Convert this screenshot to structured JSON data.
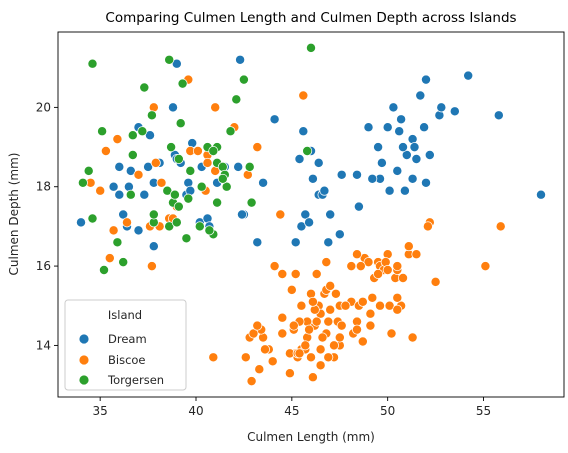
{
  "chart_data": {
    "type": "scatter",
    "title": "Comparing Culmen Length and Culmen Depth across Islands",
    "xlabel": "Culmen Length (mm)",
    "ylabel": "Culmen Depth (mm)",
    "xlim": [
      32.8,
      59.2
    ],
    "ylim": [
      12.7,
      21.9
    ],
    "xticks": [
      35,
      40,
      45,
      50,
      55
    ],
    "yticks": [
      14,
      16,
      18,
      20
    ],
    "grid": false,
    "legend": {
      "title": "Island",
      "placement": "lower-left"
    },
    "series": [
      {
        "name": "Dream",
        "color": "#1f77b4",
        "points": [
          [
            34.0,
            17.1
          ],
          [
            35.7,
            18.0
          ],
          [
            36.0,
            17.8
          ],
          [
            36.0,
            18.5
          ],
          [
            36.4,
            17.0
          ],
          [
            36.5,
            18.0
          ],
          [
            37.0,
            16.9
          ],
          [
            37.0,
            19.5
          ],
          [
            37.3,
            17.8
          ],
          [
            37.6,
            19.3
          ],
          [
            37.8,
            18.1
          ],
          [
            37.8,
            16.5
          ],
          [
            38.1,
            18.6
          ],
          [
            38.8,
            17.2
          ],
          [
            38.9,
            18.8
          ],
          [
            39.0,
            18.7
          ],
          [
            39.2,
            18.6
          ],
          [
            39.5,
            17.8
          ],
          [
            39.6,
            18.1
          ],
          [
            39.7,
            17.9
          ],
          [
            39.8,
            19.1
          ],
          [
            40.2,
            17.1
          ],
          [
            40.6,
            17.2
          ],
          [
            40.7,
            17.0
          ],
          [
            40.8,
            18.9
          ],
          [
            41.1,
            18.1
          ],
          [
            41.5,
            18.5
          ],
          [
            42.2,
            18.5
          ],
          [
            42.3,
            21.2
          ],
          [
            42.5,
            17.3
          ],
          [
            43.2,
            16.6
          ],
          [
            43.5,
            18.1
          ],
          [
            44.1,
            19.7
          ],
          [
            45.2,
            16.6
          ],
          [
            45.4,
            18.7
          ],
          [
            45.5,
            17.0
          ],
          [
            45.6,
            19.4
          ],
          [
            45.7,
            17.3
          ],
          [
            46.0,
            18.9
          ],
          [
            46.1,
            18.2
          ],
          [
            46.4,
            17.8
          ],
          [
            46.6,
            17.8
          ],
          [
            46.7,
            17.9
          ],
          [
            46.9,
            16.6
          ],
          [
            47.0,
            17.3
          ],
          [
            47.5,
            16.8
          ],
          [
            48.5,
            17.5
          ],
          [
            49.0,
            19.5
          ],
          [
            49.5,
            19.0
          ],
          [
            49.6,
            18.2
          ],
          [
            49.7,
            18.6
          ],
          [
            50.0,
            19.5
          ],
          [
            50.1,
            17.9
          ],
          [
            50.3,
            20.0
          ],
          [
            50.5,
            18.4
          ],
          [
            50.6,
            19.4
          ],
          [
            50.7,
            19.7
          ],
          [
            51.0,
            18.8
          ],
          [
            51.3,
            19.2
          ],
          [
            51.3,
            18.2
          ],
          [
            51.4,
            19.0
          ],
          [
            51.5,
            18.7
          ],
          [
            51.7,
            20.3
          ],
          [
            51.9,
            19.5
          ],
          [
            52.0,
            20.7
          ],
          [
            52.0,
            18.1
          ],
          [
            52.2,
            18.8
          ],
          [
            52.7,
            19.8
          ],
          [
            53.5,
            19.9
          ],
          [
            54.2,
            20.8
          ],
          [
            55.8,
            19.8
          ],
          [
            58.0,
            17.8
          ],
          [
            49.2,
            18.2
          ],
          [
            46.4,
            18.6
          ],
          [
            42.4,
            17.3
          ],
          [
            38.8,
            20.0
          ],
          [
            39.7,
            18.4
          ],
          [
            40.3,
            18.5
          ],
          [
            41.1,
            19.0
          ],
          [
            37.5,
            18.5
          ],
          [
            36.6,
            18.4
          ],
          [
            39.0,
            21.1
          ],
          [
            47.6,
            18.3
          ],
          [
            48.4,
            18.3
          ],
          [
            50.8,
            19.0
          ],
          [
            50.9,
            17.9
          ],
          [
            52.8,
            20.0
          ],
          [
            45.9,
            17.1
          ],
          [
            36.2,
            17.3
          ]
        ]
      },
      {
        "name": "Biscoe",
        "color": "#ff7f0e",
        "points": [
          [
            34.5,
            18.1
          ],
          [
            35.0,
            17.9
          ],
          [
            35.3,
            18.9
          ],
          [
            35.7,
            16.9
          ],
          [
            35.9,
            19.2
          ],
          [
            36.4,
            17.1
          ],
          [
            37.6,
            17.0
          ],
          [
            37.7,
            16.0
          ],
          [
            37.8,
            20.0
          ],
          [
            37.9,
            18.6
          ],
          [
            38.1,
            17.0
          ],
          [
            38.2,
            18.1
          ],
          [
            38.6,
            17.2
          ],
          [
            38.8,
            17.2
          ],
          [
            39.0,
            17.5
          ],
          [
            39.6,
            20.7
          ],
          [
            39.7,
            18.9
          ],
          [
            40.1,
            18.9
          ],
          [
            40.5,
            17.9
          ],
          [
            40.6,
            18.8
          ],
          [
            41.0,
            20.0
          ],
          [
            41.4,
            18.5
          ],
          [
            41.6,
            18.0
          ],
          [
            42.0,
            19.5
          ],
          [
            42.7,
            18.3
          ],
          [
            43.2,
            19.0
          ],
          [
            43.8,
            13.9
          ],
          [
            44.0,
            13.6
          ],
          [
            44.4,
            17.3
          ],
          [
            45.1,
            14.5
          ],
          [
            45.2,
            13.8
          ],
          [
            45.5,
            13.9
          ],
          [
            46.1,
            13.2
          ],
          [
            46.2,
            14.5
          ],
          [
            46.5,
            13.5
          ],
          [
            46.8,
            14.3
          ],
          [
            47.2,
            13.7
          ],
          [
            47.5,
            14.0
          ],
          [
            48.1,
            15.1
          ],
          [
            48.4,
            14.6
          ],
          [
            48.5,
            15.0
          ],
          [
            48.7,
            14.1
          ],
          [
            49.1,
            14.8
          ],
          [
            49.5,
            16.1
          ],
          [
            50.0,
            16.3
          ],
          [
            50.4,
            15.7
          ],
          [
            51.1,
            16.3
          ],
          [
            52.5,
            15.6
          ],
          [
            43.3,
            13.4
          ],
          [
            45.8,
            14.6
          ],
          [
            47.3,
            15.3
          ],
          [
            49.6,
            16.0
          ],
          [
            50.5,
            15.9
          ],
          [
            48.2,
            14.3
          ],
          [
            46.9,
            14.6
          ],
          [
            42.9,
            13.1
          ],
          [
            46.3,
            15.8
          ],
          [
            44.5,
            14.3
          ],
          [
            45.3,
            13.7
          ],
          [
            47.4,
            14.6
          ],
          [
            46.4,
            15.0
          ],
          [
            45.4,
            14.6
          ],
          [
            49.8,
            15.9
          ],
          [
            43.5,
            14.2
          ],
          [
            50.8,
            15.7
          ],
          [
            44.9,
            13.3
          ],
          [
            46.6,
            14.2
          ],
          [
            46.7,
            15.3
          ],
          [
            45.7,
            13.9
          ],
          [
            48.8,
            16.2
          ],
          [
            50.7,
            15.0
          ],
          [
            44.1,
            16.0
          ],
          [
            45.0,
            15.4
          ],
          [
            51.5,
            16.3
          ],
          [
            46.0,
            15.3
          ],
          [
            42.6,
            13.7
          ],
          [
            44.9,
            13.8
          ],
          [
            50.1,
            15.0
          ],
          [
            45.2,
            15.8
          ],
          [
            49.9,
            16.1
          ],
          [
            46.8,
            16.1
          ],
          [
            45.5,
            15.0
          ],
          [
            52.2,
            17.1
          ],
          [
            49.0,
            16.1
          ],
          [
            50.5,
            15.2
          ],
          [
            47.7,
            15.0
          ],
          [
            45.1,
            14.4
          ],
          [
            48.6,
            16.0
          ],
          [
            43.6,
            13.9
          ],
          [
            45.3,
            13.8
          ],
          [
            46.5,
            14.8
          ],
          [
            50.2,
            14.3
          ],
          [
            43.4,
            14.4
          ],
          [
            44.0,
            13.6
          ],
          [
            47.5,
            15.0
          ],
          [
            45.8,
            14.2
          ],
          [
            49.3,
            15.7
          ],
          [
            46.2,
            14.9
          ],
          [
            49.2,
            15.2
          ],
          [
            50.0,
            15.9
          ],
          [
            48.7,
            15.1
          ],
          [
            46.1,
            15.1
          ],
          [
            47.8,
            15.0
          ],
          [
            45.5,
            15.0
          ],
          [
            42.8,
            14.2
          ],
          [
            55.9,
            17.0
          ],
          [
            51.3,
            14.2
          ],
          [
            55.1,
            16.0
          ],
          [
            45.6,
            20.3
          ],
          [
            52.1,
            17.0
          ],
          [
            40.9,
            13.7
          ],
          [
            43.0,
            14.3
          ],
          [
            48.4,
            16.3
          ],
          [
            41.0,
            18.4
          ],
          [
            40.6,
            18.6
          ],
          [
            37.0,
            18.3
          ],
          [
            35.5,
            16.2
          ],
          [
            45.1,
            14.5
          ],
          [
            44.5,
            14.7
          ],
          [
            46.3,
            14.6
          ],
          [
            46.5,
            13.9
          ],
          [
            47.0,
            14.9
          ],
          [
            48.1,
            16.0
          ],
          [
            47.2,
            14.0
          ],
          [
            46.9,
            13.7
          ],
          [
            49.1,
            14.5
          ],
          [
            45.4,
            13.8
          ],
          [
            45.9,
            14.4
          ],
          [
            47.6,
            14.5
          ],
          [
            49.6,
            15.0
          ],
          [
            50.5,
            16.0
          ],
          [
            46.8,
            15.4
          ],
          [
            47.0,
            15.5
          ],
          [
            43.2,
            14.5
          ],
          [
            45.7,
            14.0
          ],
          [
            46.0,
            13.7
          ],
          [
            44.5,
            15.8
          ],
          [
            51.1,
            16.5
          ],
          [
            48.4,
            14.4
          ],
          [
            50.5,
            14.9
          ],
          [
            49.5,
            15.8
          ],
          [
            47.5,
            14.2
          ]
        ]
      },
      {
        "name": "Torgersen",
        "color": "#2ca02c",
        "points": [
          [
            34.4,
            18.4
          ],
          [
            34.6,
            17.2
          ],
          [
            34.6,
            21.1
          ],
          [
            35.1,
            19.4
          ],
          [
            35.2,
            15.9
          ],
          [
            35.9,
            16.6
          ],
          [
            36.2,
            16.1
          ],
          [
            36.6,
            17.8
          ],
          [
            36.7,
            19.3
          ],
          [
            37.2,
            19.4
          ],
          [
            37.3,
            20.5
          ],
          [
            37.7,
            19.8
          ],
          [
            37.8,
            17.1
          ],
          [
            37.8,
            17.3
          ],
          [
            38.5,
            17.9
          ],
          [
            38.6,
            21.2
          ],
          [
            38.6,
            17.0
          ],
          [
            38.7,
            19.0
          ],
          [
            38.8,
            17.6
          ],
          [
            38.9,
            17.8
          ],
          [
            39.0,
            17.1
          ],
          [
            39.1,
            18.7
          ],
          [
            39.2,
            19.6
          ],
          [
            39.3,
            20.6
          ],
          [
            39.5,
            16.7
          ],
          [
            39.6,
            17.7
          ],
          [
            39.7,
            18.4
          ],
          [
            40.2,
            17.0
          ],
          [
            40.3,
            18.0
          ],
          [
            40.6,
            19.0
          ],
          [
            40.9,
            16.8
          ],
          [
            41.1,
            17.6
          ],
          [
            41.1,
            18.6
          ],
          [
            41.1,
            19.0
          ],
          [
            41.4,
            18.5
          ],
          [
            41.5,
            18.3
          ],
          [
            41.8,
            19.4
          ],
          [
            42.1,
            20.2
          ],
          [
            42.5,
            20.7
          ],
          [
            42.8,
            18.5
          ],
          [
            42.9,
            17.6
          ],
          [
            46.0,
            21.5
          ],
          [
            45.8,
            18.9
          ],
          [
            40.9,
            18.9
          ],
          [
            34.1,
            18.1
          ],
          [
            36.7,
            18.8
          ],
          [
            39.1,
            17.5
          ],
          [
            41.6,
            18.0
          ],
          [
            41.4,
            18.2
          ],
          [
            40.7,
            16.9
          ]
        ]
      }
    ]
  }
}
